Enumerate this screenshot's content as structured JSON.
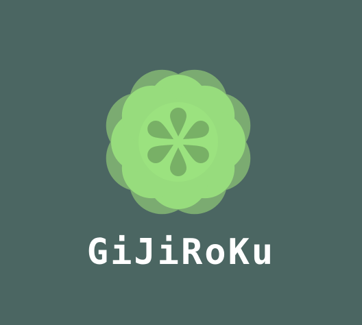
{
  "app": {
    "name": "GiJiRoKu"
  },
  "logo": {
    "icon": "flower-logo-icon",
    "petal_color_light": "#9be27f",
    "petal_color_dark": "#7eaf72",
    "center_color": "#78b066"
  },
  "theme": {
    "background": "#4b6662",
    "text": "#ffffff"
  }
}
